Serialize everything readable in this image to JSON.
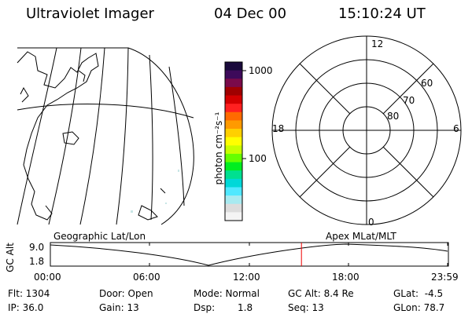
{
  "header": {
    "instrument": "Ultraviolet Imager",
    "date": "04 Dec 00",
    "time": "15:10:24 UT"
  },
  "colorbar": {
    "label": "photon cm⁻²s⁻¹",
    "ticks": [
      "1000",
      "100"
    ],
    "colors": [
      "#1a0a3c",
      "#3d0a5a",
      "#7a0a4a",
      "#a00000",
      "#d40000",
      "#ff2020",
      "#ff6a00",
      "#ff9a00",
      "#ffd000",
      "#ffff00",
      "#c8ff00",
      "#66ff00",
      "#00ee20",
      "#00e090",
      "#00d8d8",
      "#50e8ff",
      "#a8eaf0",
      "#dcdcdc",
      "#f4f4f4"
    ]
  },
  "polar_plot": {
    "mlt_labels": {
      "top": "12",
      "left": "18",
      "right": "6",
      "bottom": "0"
    },
    "lat_labels": [
      "60",
      "70",
      "80"
    ]
  },
  "timeline": {
    "left_title": "Geographic Lat/Lon",
    "right_title": "Apex MLat/MLT",
    "axis_label": "GC Alt",
    "y_max": "9.0",
    "y_min": "1.8",
    "x_ticks": [
      "00:00",
      "06:00",
      "12:00",
      "18:00",
      "23:59"
    ],
    "current_time_fraction": 0.632,
    "marker_color": "#ee0000"
  },
  "info": {
    "flt": "Flt: 1304",
    "ip": "IP: 36.0",
    "door": "Door: Open",
    "gain": "Gain: 13",
    "mode": "Mode: Normal",
    "dsp_label": "Dsp:",
    "dsp_value": "1.8",
    "gc_alt": "GC Alt: 8.4 Re",
    "seq": "Seq: 13",
    "glat": "GLat:  -4.5",
    "glon": "GLon: 78.7"
  }
}
